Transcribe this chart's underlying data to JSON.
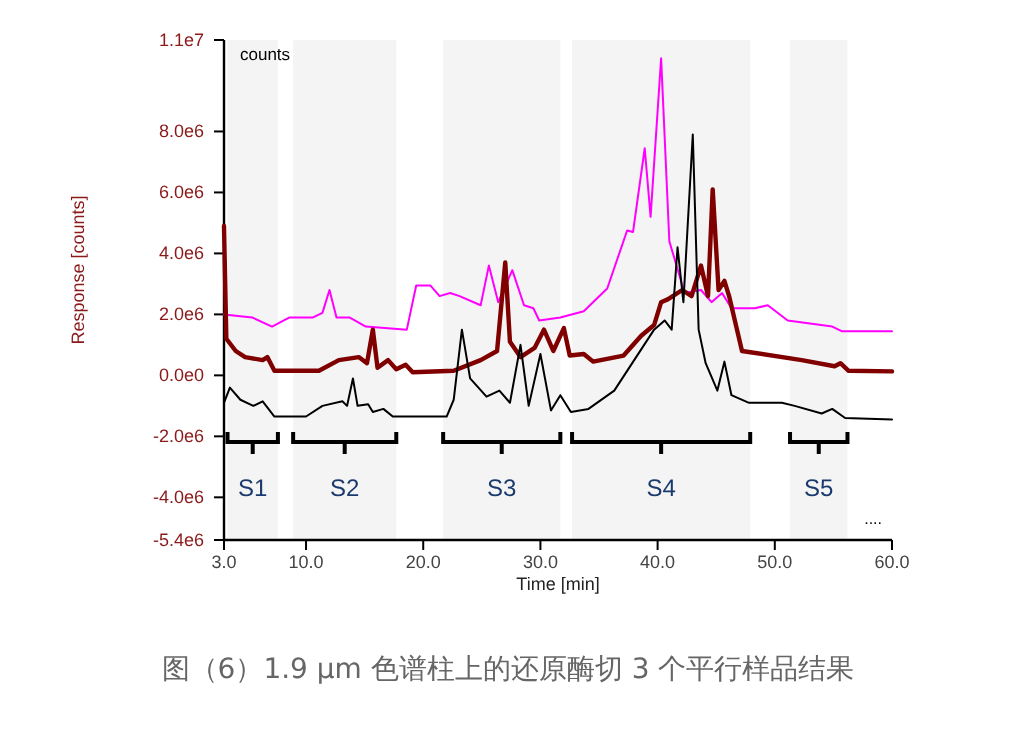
{
  "chart_data": {
    "type": "line",
    "xlabel": "Time [min]",
    "ylabel": "Response [counts]",
    "xlim": [
      3,
      60
    ],
    "ylim": [
      -5400000.0,
      11000000.0
    ],
    "xticks": [
      {
        "value": 3,
        "label": "3.0"
      },
      {
        "value": 10,
        "label": "10.0"
      },
      {
        "value": 20,
        "label": "20.0"
      },
      {
        "value": 30,
        "label": "30.0"
      },
      {
        "value": 40,
        "label": "40.0"
      },
      {
        "value": 50,
        "label": "50.0"
      },
      {
        "value": 60,
        "label": "60.0"
      }
    ],
    "yticks": [
      {
        "value": -5400000.0,
        "label": "-5.4e6"
      },
      {
        "value": -4000000.0,
        "label": "-4.0e6"
      },
      {
        "value": -2000000.0,
        "label": "-2.0e6"
      },
      {
        "value": 0,
        "label": "0.0e0"
      },
      {
        "value": 2000000.0,
        "label": "2.0e6"
      },
      {
        "value": 4000000.0,
        "label": "4.0e6"
      },
      {
        "value": 6000000.0,
        "label": "6.0e6"
      },
      {
        "value": 8000000.0,
        "label": "8.0e6"
      },
      {
        "value": 11000000.0,
        "label": "1.1e7"
      }
    ],
    "grid": false,
    "series": [
      {
        "color": "#ff00ff",
        "x": [
          3.0,
          5.4,
          7.1,
          8.6,
          10.6,
          11.4,
          12.0,
          12.6,
          13.7,
          15.1,
          18.6,
          19.4,
          20.6,
          21.4,
          22.3,
          23.1,
          24.9,
          25.6,
          26.4,
          27.6,
          28.6,
          29.4,
          29.9,
          31.7,
          33.7,
          35.7,
          37.4,
          37.9,
          38.9,
          39.4,
          40.3,
          41.0,
          42.3,
          43.7,
          44.6,
          45.5,
          46.3,
          48.3,
          49.4,
          51.1,
          54.9,
          55.7,
          60.0
        ],
        "values": [
          2000000.0,
          1900000.0,
          1600000.0,
          1900000.0,
          1900000.0,
          2050000.0,
          2800000.0,
          1900000.0,
          1900000.0,
          1600000.0,
          1500000.0,
          2950000.0,
          2950000.0,
          2600000.0,
          2700000.0,
          2600000.0,
          2300000.0,
          3600000.0,
          2400000.0,
          3450000.0,
          2300000.0,
          2200000.0,
          1800000.0,
          1900000.0,
          2100000.0,
          2850000.0,
          4750000.0,
          4700000.0,
          7450000.0,
          5200000.0,
          10400000.0,
          4400000.0,
          2700000.0,
          2800000.0,
          2400000.0,
          2700000.0,
          2200000.0,
          2200000.0,
          2300000.0,
          1800000.0,
          1600000.0,
          1450000.0,
          1450000.0
        ]
      },
      {
        "color": "#800000",
        "x": [
          3.0,
          3.2,
          4.0,
          4.8,
          6.3,
          6.7,
          7.3,
          11.1,
          12.8,
          14.5,
          15.2,
          15.7,
          16.1,
          17.0,
          17.7,
          18.5,
          19.1,
          22.6,
          24.9,
          26.3,
          27.0,
          27.4,
          28.3,
          29.5,
          30.3,
          31.1,
          32.0,
          32.5,
          33.7,
          34.5,
          37.1,
          38.6,
          39.7,
          40.3,
          40.9,
          42.1,
          42.9,
          43.7,
          44.3,
          44.7,
          45.2,
          45.7,
          46.1,
          47.2,
          52.3,
          55.1,
          55.6,
          56.3,
          60.0
        ],
        "values": [
          4900000.0,
          1200000.0,
          800000.0,
          600000.0,
          500000.0,
          600000.0,
          150000.0,
          150000.0,
          500000.0,
          600000.0,
          400000.0,
          1500000.0,
          250000.0,
          500000.0,
          200000.0,
          350000.0,
          100000.0,
          150000.0,
          500000.0,
          800000.0,
          3700000.0,
          1100000.0,
          600000.0,
          900000.0,
          1500000.0,
          800000.0,
          1550000.0,
          650000.0,
          700000.0,
          450000.0,
          650000.0,
          1300000.0,
          1650000.0,
          2400000.0,
          2500000.0,
          2800000.0,
          2600000.0,
          3600000.0,
          2600000.0,
          6100000.0,
          2800000.0,
          3100000.0,
          2600000.0,
          800000.0,
          500000.0,
          300000.0,
          400000.0,
          150000.0,
          130000.0
        ]
      },
      {
        "color": "#000000",
        "x": [
          3.0,
          3.5,
          4.4,
          5.5,
          6.3,
          7.3,
          10.0,
          11.4,
          13.1,
          13.5,
          14.0,
          14.4,
          15.3,
          15.7,
          16.6,
          17.4,
          22.0,
          22.6,
          23.3,
          24.0,
          25.4,
          26.5,
          27.4,
          28.3,
          29.0,
          30.0,
          30.9,
          31.7,
          32.6,
          34.1,
          36.3,
          38.0,
          39.7,
          40.6,
          41.2,
          41.7,
          42.2,
          43.0,
          43.5,
          44.1,
          45.1,
          45.7,
          46.3,
          47.8,
          50.6,
          51.7,
          54.0,
          54.9,
          56.0,
          60.0
        ],
        "values": [
          -900000.0,
          -400000.0,
          -800000.0,
          -1000000.0,
          -850000.0,
          -1350000.0,
          -1350000.0,
          -1000000.0,
          -850000.0,
          -1000000.0,
          -100000.0,
          -1000000.0,
          -950000.0,
          -1200000.0,
          -1100000.0,
          -1350000.0,
          -1350000.0,
          -800000.0,
          1500000.0,
          -100000.0,
          -700000.0,
          -500000.0,
          -900000.0,
          1000000.0,
          -1000000.0,
          700000.0,
          -1150000.0,
          -650000.0,
          -1200000.0,
          -1100000.0,
          -500000.0,
          500000.0,
          1500000.0,
          1800000.0,
          1500000.0,
          4200000.0,
          2400000.0,
          7900000.0,
          1500000.0,
          400000.0,
          -500000.0,
          450000.0,
          -650000.0,
          -900000.0,
          -900000.0,
          -1000000.0,
          -1250000.0,
          -1100000.0,
          -1400000.0,
          -1450000.0
        ]
      }
    ],
    "bands": [
      {
        "axis": "x",
        "from": 3.3,
        "to": 7.6,
        "label": "S1"
      },
      {
        "axis": "x",
        "from": 8.9,
        "to": 17.7,
        "label": "S2"
      },
      {
        "axis": "x",
        "from": 21.7,
        "to": 31.7,
        "label": "S3"
      },
      {
        "axis": "x",
        "from": 32.7,
        "to": 47.9,
        "label": "S4"
      },
      {
        "axis": "x",
        "from": 51.3,
        "to": 56.2,
        "label": "S5"
      }
    ],
    "annotations": [
      "counts",
      "....",
      "图（6）1.9 μm 色谱柱上的还原酶切 3 个平行样品结果"
    ]
  }
}
